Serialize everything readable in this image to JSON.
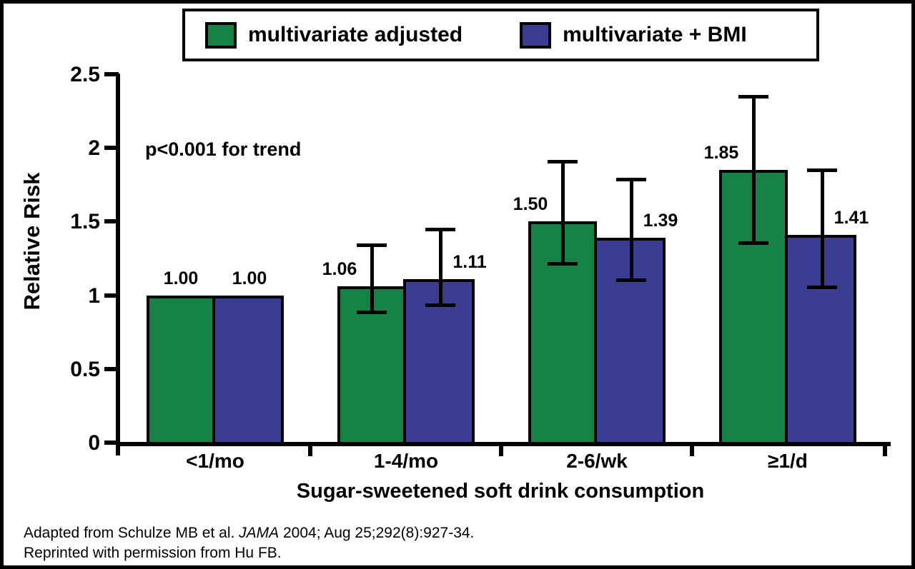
{
  "legend": {
    "items": [
      {
        "label": "multivariate adjusted",
        "color": "#178245"
      },
      {
        "label": "multivariate + BMI",
        "color": "#3A3D92"
      }
    ]
  },
  "annotation": "p<0.001 for trend",
  "y_axis_title": "Relative Risk",
  "x_axis_title": "Sugar-sweetened soft drink consumption",
  "footer": {
    "line1_prefix": "Adapted from Schulze MB et al. ",
    "line1_italic": "JAMA",
    "line1_suffix": " 2004; Aug 25;292(8):927-34.",
    "line2": "Reprinted with permission from Hu FB."
  },
  "chart_data": {
    "type": "bar",
    "title": "",
    "categories": [
      "<1/mo",
      "1-4/mo",
      "2-6/wk",
      "≥1/d"
    ],
    "series": [
      {
        "name": "multivariate adjusted",
        "color": "#178245",
        "values": [
          1.0,
          1.06,
          1.5,
          1.85
        ],
        "labels": [
          "1.00",
          "1.06",
          "1.50",
          "1.85"
        ],
        "error_low": [
          null,
          0.88,
          1.21,
          1.35
        ],
        "error_high": [
          null,
          1.34,
          1.91,
          2.35
        ]
      },
      {
        "name": "multivariate + BMI",
        "color": "#3A3D92",
        "values": [
          1.0,
          1.11,
          1.39,
          1.41
        ],
        "labels": [
          "1.00",
          "1.11",
          "1.39",
          "1.41"
        ],
        "error_low": [
          null,
          0.93,
          1.1,
          1.05
        ],
        "error_high": [
          null,
          1.45,
          1.79,
          1.85
        ]
      }
    ],
    "xlabel": "Sugar-sweetened soft drink consumption",
    "ylabel": "Relative Risk",
    "ylim": [
      0,
      2.5
    ],
    "yticks": [
      0,
      0.5,
      1,
      1.5,
      2,
      2.5
    ],
    "ytick_labels": [
      "0",
      "0.5",
      "1",
      "1.5",
      "2",
      "2.5"
    ],
    "annotations": [
      "p<0.001 for trend"
    ],
    "legend_position": "top",
    "grid": false
  }
}
